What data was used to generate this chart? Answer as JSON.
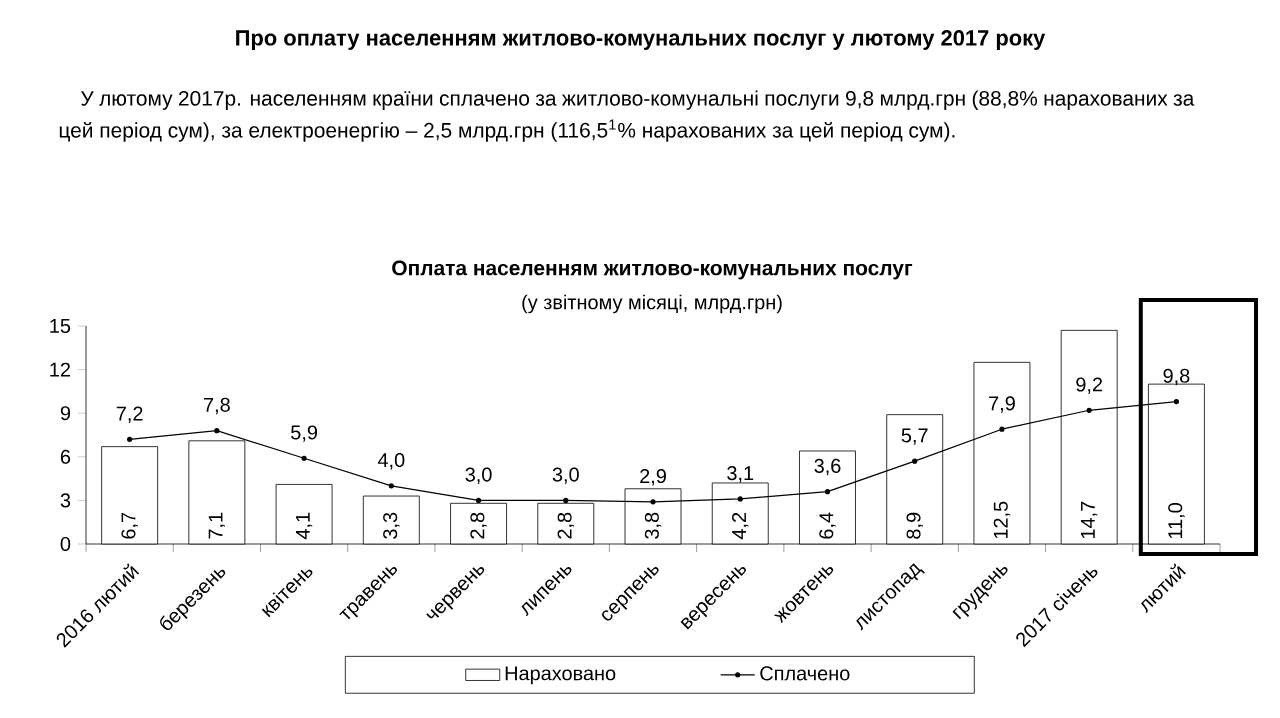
{
  "chart_data": {
    "type": "bar",
    "title": "Оплата населенням житлово-комунальних послуг",
    "subtitle": "(у звітному місяці, млрд.грн)",
    "annotations": [
      "Про оплату населенням житлово-комунальних послуг у лютому 2017 року",
      "У лютому 2017р. населенням країни сплачено за житлово-комунальні послуги 9,8 млрд.грн (88,8% нарахованих за цей період сум), за електроенергію – 2,5 млрд.грн (116,5$^{1}$% нарахованих за цей період сум)."
    ],
    "categories": [
      "2016 лютий",
      "березень",
      "квітень",
      "травень",
      "червень",
      "липень",
      "серпень",
      "вересень",
      "жовтень",
      "листопад",
      "грудень",
      "2017 січень",
      "лютий"
    ],
    "series": [
      {
        "name": "Нараховано",
        "color": "#ffffff",
        "values": [
          6.7,
          7.1,
          4.1,
          3.3,
          2.8,
          2.8,
          3.8,
          4.2,
          6.4,
          8.9,
          12.5,
          14.7,
          11.0
        ],
        "value_labels": [
          "6,7",
          "7,1",
          "4,1",
          "3,3",
          "2,8",
          "2,8",
          "3,8",
          "4,2",
          "6,4",
          "8,9",
          "12,5",
          "14,7",
          "11,0"
        ]
      },
      {
        "name": "Сплачено",
        "type": "line",
        "color": "#000000",
        "values": [
          7.2,
          7.8,
          5.9,
          4.0,
          3.0,
          3.0,
          2.9,
          3.1,
          3.6,
          5.7,
          7.9,
          9.2,
          9.8
        ],
        "value_labels": [
          "7,2",
          "7,8",
          "5,9",
          "4,0",
          "3,0",
          "3,0",
          "2,9",
          "3,1",
          "3,6",
          "5,7",
          "7,9",
          "9,2",
          "9,8"
        ]
      }
    ],
    "ylim": [
      0,
      15
    ],
    "yticks": [
      0,
      3,
      6,
      9,
      12,
      15
    ],
    "grid": false,
    "legend": "bottom",
    "marker": "circle"
  }
}
